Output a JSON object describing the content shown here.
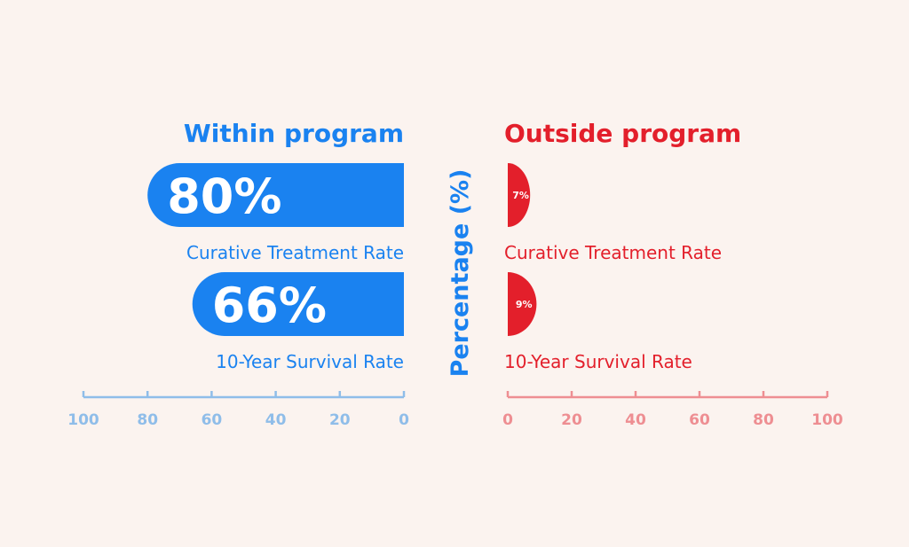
{
  "colors": {
    "background": "#fbf3ef",
    "within": "#1a82f0",
    "within_axis": "#8fbde9",
    "outside": "#e31f2b",
    "outside_axis": "#ee8e92",
    "bar_text": "#ffffff"
  },
  "y_axis_label": "Percentage (%)",
  "chart_data": [
    {
      "type": "bar",
      "orientation": "horizontal",
      "direction": "right-to-left",
      "title": "Within program",
      "categories": [
        "Curative Treatment Rate",
        "10-Year Survival Rate"
      ],
      "values": [
        80,
        66
      ],
      "value_labels": [
        "80%",
        "66%"
      ],
      "xlim": [
        0,
        100
      ],
      "ticks": [
        100,
        80,
        60,
        40,
        20,
        0
      ],
      "tick_labels": [
        "100",
        "80",
        "60",
        "40",
        "20",
        "0"
      ],
      "ylabel": "Percentage (%)"
    },
    {
      "type": "bar",
      "orientation": "horizontal",
      "direction": "left-to-right",
      "title": "Outside program",
      "categories": [
        "Curative Treatment Rate",
        "10-Year Survival Rate"
      ],
      "values": [
        7,
        9
      ],
      "value_labels": [
        "7%",
        "9%"
      ],
      "xlim": [
        0,
        100
      ],
      "ticks": [
        0,
        20,
        40,
        60,
        80,
        100
      ],
      "tick_labels": [
        "0",
        "20",
        "40",
        "60",
        "80",
        "100"
      ]
    }
  ]
}
